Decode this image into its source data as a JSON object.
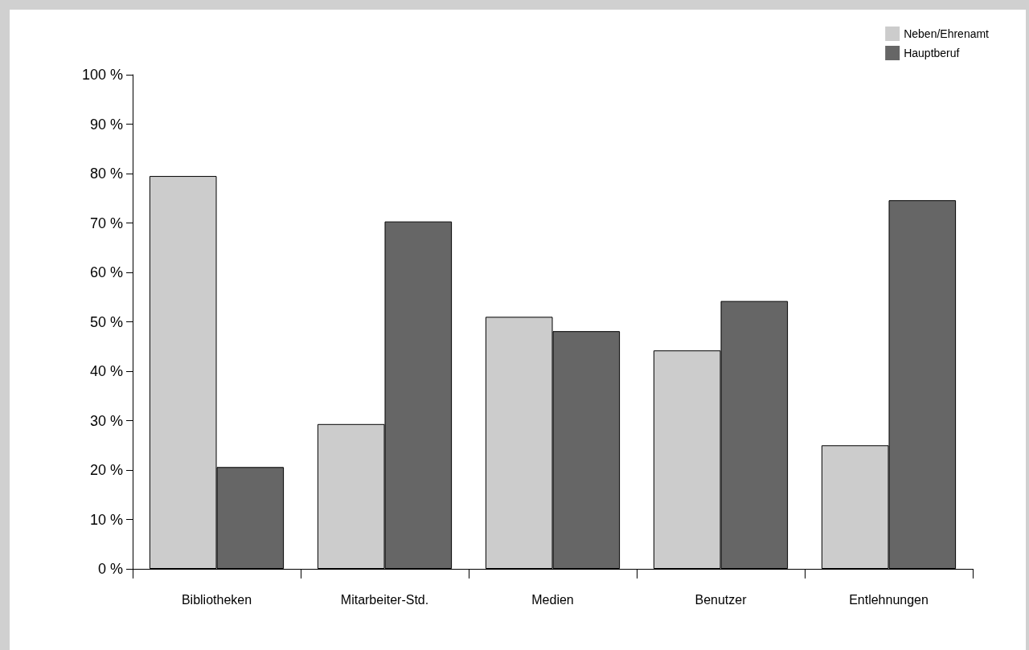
{
  "chart_data": {
    "type": "bar",
    "categories": [
      "Bibliotheken",
      "Mitarbeiter-Std.",
      "Medien",
      "Benutzer",
      "Entlehnungen"
    ],
    "series": [
      {
        "name": "Neben/Ehrenamt",
        "color": "#cccccc",
        "values": [
          79.5,
          29.3,
          51.0,
          44.2,
          25.0
        ]
      },
      {
        "name": "Hauptberuf",
        "color": "#666666",
        "values": [
          20.6,
          70.3,
          48.1,
          54.2,
          74.6
        ]
      }
    ],
    "ylim": [
      0,
      100
    ],
    "yticks": [
      {
        "value": 0,
        "label": "0 %"
      },
      {
        "value": 10,
        "label": "10 %"
      },
      {
        "value": 20,
        "label": "20 %"
      },
      {
        "value": 30,
        "label": "30 %"
      },
      {
        "value": 40,
        "label": "40 %"
      },
      {
        "value": 50,
        "label": "50 %"
      },
      {
        "value": 60,
        "label": "60 %"
      },
      {
        "value": 70,
        "label": "70 %"
      },
      {
        "value": 80,
        "label": "80 %"
      },
      {
        "value": 90,
        "label": "90 %"
      },
      {
        "value": 100,
        "label": "100 %"
      }
    ],
    "grid": false,
    "legend": "top right"
  }
}
